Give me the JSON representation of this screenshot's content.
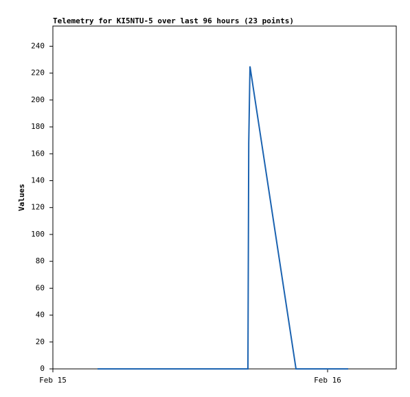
{
  "chart_data": {
    "type": "line",
    "title": "Telemetry for KI5NTU-5 over last 96 hours (23 points)",
    "y_label": "Values",
    "x": [
      0.1625,
      0.2,
      0.25,
      0.3,
      0.35,
      0.4,
      0.45,
      0.5,
      0.55,
      0.6,
      0.65,
      0.71,
      0.711,
      0.713,
      0.7175,
      0.885,
      0.9,
      0.925,
      0.95,
      1.0,
      1.025,
      1.05,
      1.075
    ],
    "series": [
      {
        "color": "#1a62b0",
        "values": [
          0,
          0,
          0,
          0,
          0,
          0,
          0,
          0,
          0,
          0,
          0,
          0,
          57,
          168,
          225,
          0,
          0,
          0,
          0,
          0,
          0,
          0,
          0
        ]
      }
    ],
    "xlim": [
      0,
      1.25
    ],
    "xticks": [
      {
        "value": 0,
        "label": "Feb 15"
      },
      {
        "value": 1,
        "label": "Feb 16"
      }
    ],
    "ylim": [
      0,
      255
    ],
    "yticks": [
      0,
      20,
      40,
      60,
      80,
      100,
      120,
      140,
      160,
      180,
      200,
      220,
      240
    ]
  }
}
